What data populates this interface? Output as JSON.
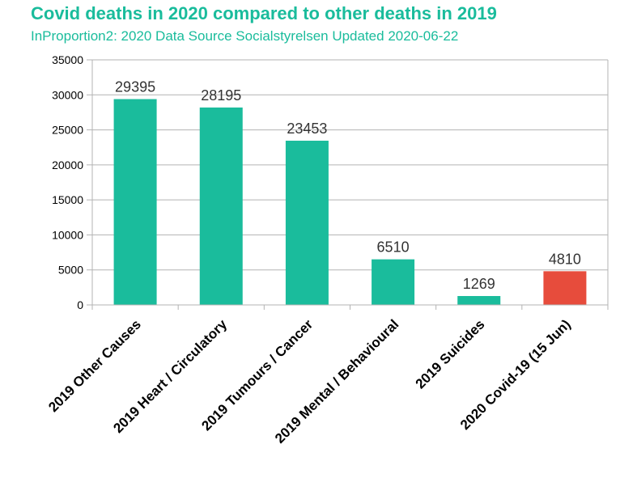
{
  "chart_data": {
    "type": "bar",
    "title": "Covid deaths in 2020 compared to other deaths in 2019",
    "subtitle": "InProportion2: 2020 Data Source Socialstyrelsen Updated 2020-06-22",
    "categories": [
      "2019 Other Causes",
      "2019 Heart / Circulatory",
      "2019 Tumours / Cancer",
      "2019 Mental / Behavioural",
      "2019 Suicides",
      "2020 Covid-19 (15 Jun)"
    ],
    "values": [
      29395,
      28195,
      23453,
      6510,
      1269,
      4810
    ],
    "bar_colors": [
      "#1abc9c",
      "#1abc9c",
      "#1abc9c",
      "#1abc9c",
      "#1abc9c",
      "#e74c3c"
    ],
    "ylim": [
      0,
      35000
    ],
    "yticks": [
      0,
      5000,
      10000,
      15000,
      20000,
      25000,
      30000,
      35000
    ],
    "grid": true,
    "legend": "none",
    "xlabel": "",
    "ylabel": ""
  }
}
